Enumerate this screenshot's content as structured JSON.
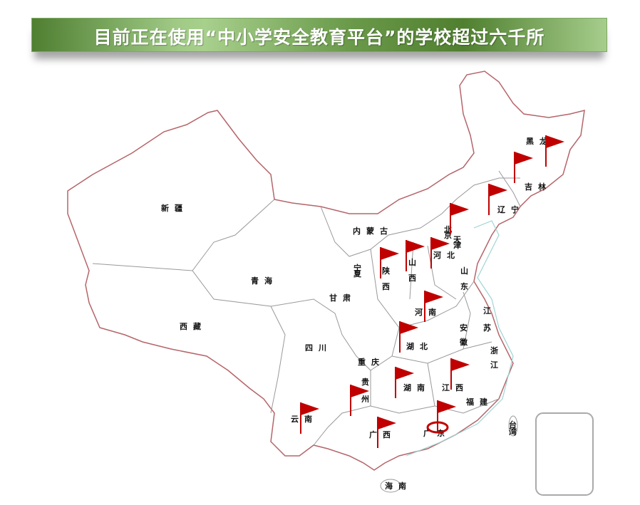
{
  "title": "目前正在使用“中小学安全教育平台”的学校超过六千所",
  "colors": {
    "flag": "#c00000",
    "border_outer": "#b5656a",
    "border_inner": "#999999",
    "coast": "#9fd4d4",
    "banner": "#6a9a4a"
  },
  "provinces": [
    "新疆",
    "西藏",
    "青海",
    "内蒙古",
    "甘肃",
    "宁夏",
    "陕西",
    "山西",
    "河北",
    "北京",
    "天津",
    "山东",
    "河南",
    "江苏",
    "安徽",
    "湖北",
    "四川",
    "重庆",
    "浙江",
    "贵州",
    "湖南",
    "江西",
    "福建",
    "云南",
    "广西",
    "广东",
    "海南",
    "台湾",
    "黑龙",
    "吉林",
    "辽宁"
  ],
  "flag_icon": "red-flag-icon",
  "highlight_icon": "target-ring-icon"
}
